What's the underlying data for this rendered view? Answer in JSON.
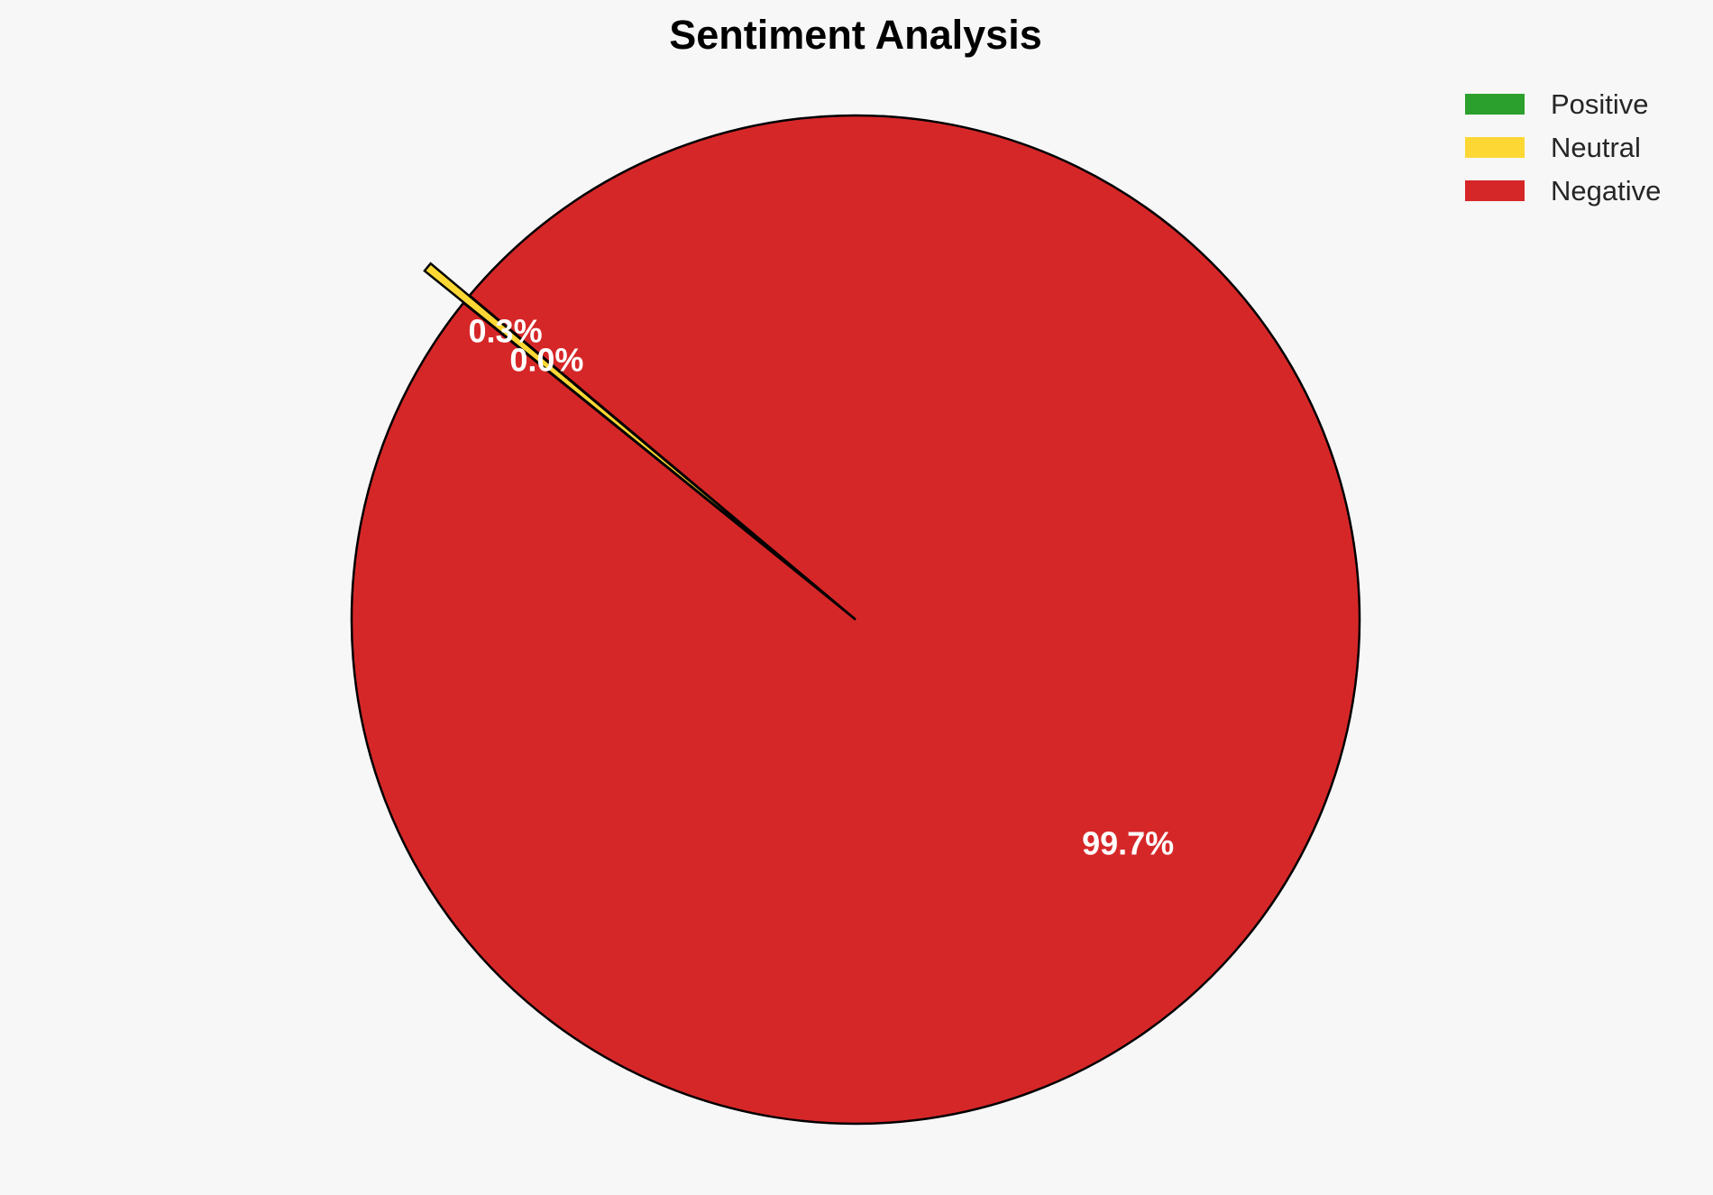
{
  "chart_data": {
    "type": "pie",
    "title": "Sentiment Analysis",
    "categories": [
      "Positive",
      "Neutral",
      "Negative"
    ],
    "values": [
      0.0,
      0.3,
      99.7
    ],
    "labels": [
      "0.0%",
      "0.3%",
      "99.7%"
    ],
    "colors": [
      "#2ca02c",
      "#fdd835",
      "#d62728"
    ],
    "explode": [
      0,
      0.1,
      0
    ],
    "start_angle": 140,
    "legend_placement": "top-right"
  }
}
